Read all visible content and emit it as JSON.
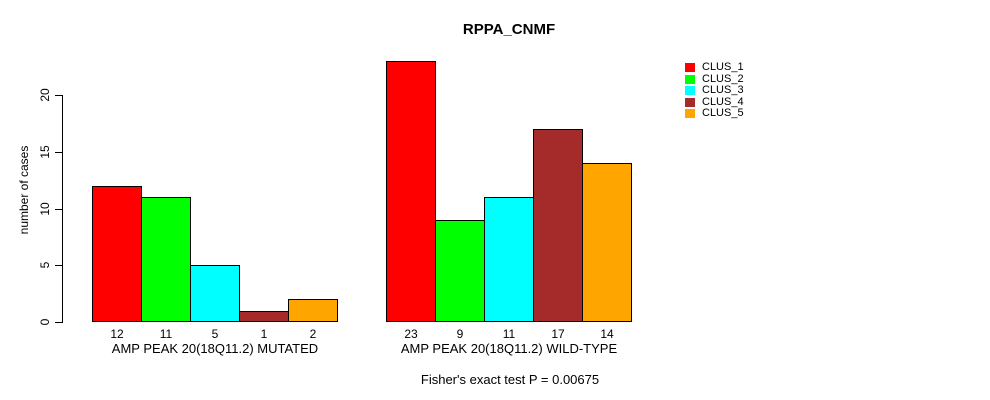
{
  "chart_data": {
    "type": "bar",
    "title": "RPPA_CNMF",
    "ylabel": "number of cases",
    "xlabel": "",
    "ylim": [
      0,
      23
    ],
    "yticks": [
      0,
      5,
      10,
      15,
      20
    ],
    "grid": false,
    "legend_position": "right",
    "series": [
      {
        "name": "CLUS_1",
        "color": "#ff0000"
      },
      {
        "name": "CLUS_2",
        "color": "#00ff00"
      },
      {
        "name": "CLUS_3",
        "color": "#00ffff"
      },
      {
        "name": "CLUS_4",
        "color": "#a52a2a"
      },
      {
        "name": "CLUS_5",
        "color": "#ffa500"
      }
    ],
    "groups": [
      {
        "label": "AMP PEAK 20(18Q11.2) MUTATED",
        "values": [
          12,
          11,
          5,
          1,
          2
        ]
      },
      {
        "label": "AMP PEAK 20(18Q11.2) WILD-TYPE",
        "values": [
          23,
          9,
          11,
          17,
          14
        ]
      }
    ],
    "bar_value_labels": [
      [
        "12",
        "11",
        "5",
        "1",
        "2"
      ],
      [
        "23",
        "9",
        "11",
        "17",
        "14"
      ]
    ],
    "footnote": "Fisher's exact test P = 0.00675"
  }
}
